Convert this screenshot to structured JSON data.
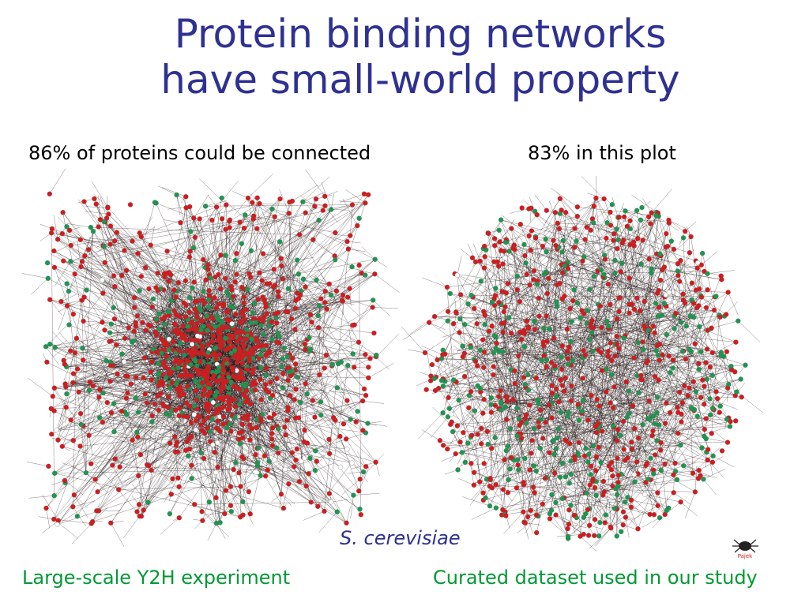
{
  "slide": {
    "title_line1": "Protein binding networks",
    "title_line2": "have small-world property",
    "left_caption": "86% of proteins could be connected",
    "right_caption": "83% in this plot",
    "species": "S. cerevisiae",
    "left_label": "Large-scale Y2H experiment",
    "right_label": "Curated dataset used in our study",
    "logo_text": "Pajek"
  },
  "colors": {
    "title": "#2e3192",
    "species": "#2e3192",
    "label": "#009933",
    "text": "#000000",
    "node_red": "#d7191c",
    "node_green": "#1a9850",
    "node_white": "#ffffff",
    "edge": "#2a1a1a"
  },
  "icons": [
    "pajek-spider-logo"
  ]
}
